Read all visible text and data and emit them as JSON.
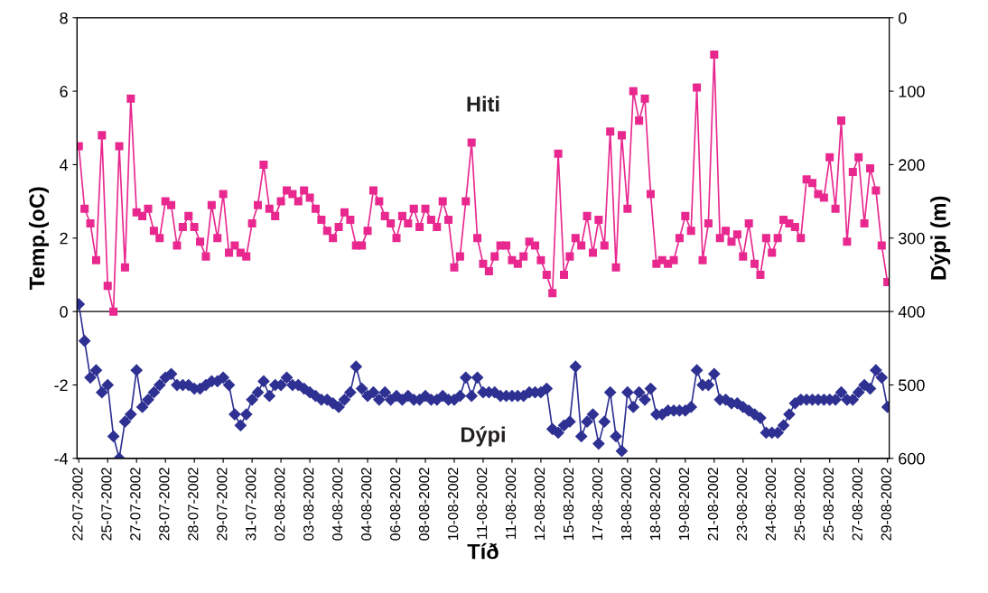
{
  "chart_data": {
    "type": "line",
    "xlabel": "Tíð",
    "ylabel": "Temp.(oC)",
    "y2label": "Dýpi (m)",
    "categories": [
      "22-07-2002",
      null,
      null,
      null,
      null,
      "25-07-2002",
      null,
      null,
      null,
      null,
      "27-07-2002",
      null,
      null,
      null,
      null,
      "28-07-2002",
      null,
      null,
      null,
      null,
      "28-07-2002",
      null,
      null,
      null,
      null,
      "29-07-2002",
      null,
      null,
      null,
      null,
      "31-07-2002",
      null,
      null,
      null,
      null,
      "02-08-2002",
      null,
      null,
      null,
      null,
      "03-08-2002",
      null,
      null,
      null,
      null,
      "04-08-2002",
      null,
      null,
      null,
      null,
      "04-08-2002",
      null,
      null,
      null,
      null,
      "06-08-2002",
      null,
      null,
      null,
      null,
      "08-08-2002",
      null,
      null,
      null,
      null,
      "10-08-2002",
      null,
      null,
      null,
      null,
      "11-08-2002",
      null,
      null,
      null,
      null,
      "11-08-2002",
      null,
      null,
      null,
      null,
      "12-08-2002",
      null,
      null,
      null,
      null,
      "15-08-2002",
      null,
      null,
      null,
      null,
      "17-08-2002",
      null,
      null,
      null,
      null,
      "18-08-2002",
      null,
      null,
      null,
      null,
      "18-08-2002",
      null,
      null,
      null,
      null,
      "19-08-2002",
      null,
      null,
      null,
      null,
      "21-08-2002",
      null,
      null,
      null,
      null,
      "23-08-2002",
      null,
      null,
      null,
      null,
      "24-08-2002",
      null,
      null,
      null,
      null,
      "25-08-2002",
      null,
      null,
      null,
      null,
      "25-08-2002",
      null,
      null,
      null,
      null,
      "27-08-2002",
      null,
      null,
      null,
      null,
      "29-08-2002"
    ],
    "series": [
      {
        "name": "Hiti",
        "color": "#e8288f",
        "marker": "square",
        "values": [
          4.5,
          2.8,
          2.4,
          1.4,
          4.8,
          0.7,
          0.0,
          4.5,
          1.2,
          5.8,
          2.7,
          2.6,
          2.8,
          2.2,
          2.0,
          3.0,
          2.9,
          1.8,
          2.3,
          2.6,
          2.3,
          1.9,
          1.5,
          2.9,
          2.0,
          3.2,
          1.6,
          1.8,
          1.6,
          1.5,
          2.4,
          2.9,
          4.0,
          2.8,
          2.6,
          3.0,
          3.3,
          3.2,
          3.0,
          3.3,
          3.1,
          2.8,
          2.5,
          2.2,
          2.0,
          2.3,
          2.7,
          2.5,
          1.8,
          1.8,
          2.2,
          3.3,
          3.0,
          2.6,
          2.4,
          2.0,
          2.6,
          2.4,
          2.8,
          2.3,
          2.8,
          2.5,
          2.3,
          3.0,
          2.5,
          1.2,
          1.5,
          3.0,
          4.6,
          2.0,
          1.3,
          1.1,
          1.5,
          1.8,
          1.8,
          1.4,
          1.3,
          1.5,
          1.9,
          1.8,
          1.4,
          1.0,
          0.5,
          4.3,
          1.0,
          1.5,
          2.0,
          1.8,
          2.6,
          1.6,
          2.5,
          1.8,
          4.9,
          1.2,
          4.8,
          2.8,
          6.0,
          5.2,
          5.8,
          3.2,
          1.3,
          1.4,
          1.3,
          1.4,
          2.0,
          2.6,
          2.2,
          6.1,
          1.4,
          2.4,
          7.0,
          2.0,
          2.2,
          1.9,
          2.1,
          1.5,
          2.4,
          1.3,
          1.0,
          2.0,
          1.6,
          2.0,
          2.5,
          2.4,
          2.3,
          2.0,
          3.6,
          3.5,
          3.2,
          3.1,
          4.2,
          2.8,
          5.2,
          1.9,
          3.8,
          4.2,
          2.4,
          3.9,
          3.3,
          1.8,
          0.8
        ]
      },
      {
        "name": "Dýpi",
        "color": "#2e3192",
        "marker": "diamond",
        "axis": "y2",
        "values": [
          390,
          440,
          490,
          480,
          510,
          500,
          570,
          600,
          550,
          540,
          480,
          530,
          520,
          510,
          500,
          490,
          485,
          500,
          500,
          500,
          505,
          505,
          500,
          495,
          495,
          490,
          500,
          540,
          555,
          540,
          520,
          510,
          495,
          515,
          500,
          500,
          490,
          500,
          500,
          505,
          510,
          515,
          520,
          520,
          525,
          530,
          520,
          510,
          475,
          505,
          515,
          510,
          520,
          510,
          520,
          515,
          520,
          515,
          520,
          520,
          515,
          520,
          520,
          515,
          520,
          520,
          515,
          490,
          515,
          490,
          510,
          510,
          510,
          515,
          515,
          515,
          515,
          515,
          510,
          510,
          510,
          505,
          560,
          565,
          555,
          550,
          475,
          570,
          550,
          540,
          580,
          550,
          510,
          570,
          590,
          510,
          530,
          510,
          520,
          505,
          540,
          540,
          535,
          535,
          535,
          535,
          530,
          480,
          500,
          500,
          485,
          520,
          520,
          525,
          525,
          530,
          535,
          540,
          545,
          565,
          565,
          565,
          555,
          540,
          525,
          520,
          520,
          520,
          520,
          520,
          520,
          520,
          510,
          520,
          520,
          510,
          500,
          505,
          480,
          490,
          530
        ]
      }
    ],
    "ylim": [
      -4,
      8
    ],
    "yticks": [
      -4,
      -2,
      0,
      2,
      4,
      6,
      8
    ],
    "y2lim": [
      600,
      0
    ],
    "y2ticks": [
      0,
      100,
      200,
      300,
      400,
      500,
      600
    ],
    "ref_lines": [
      {
        "axis": "y",
        "value": 0,
        "color": "#000000"
      }
    ],
    "grid": false,
    "legend": false,
    "line_style": "solid"
  }
}
